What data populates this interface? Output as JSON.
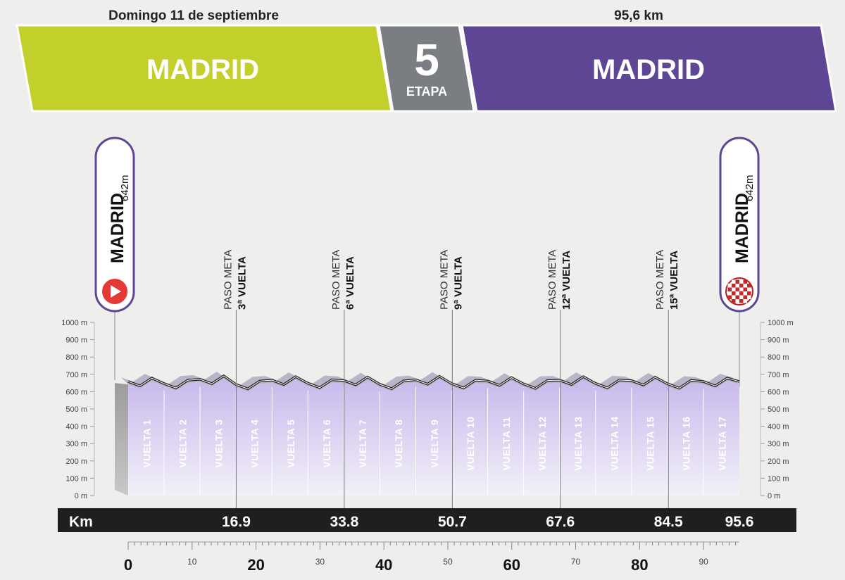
{
  "header": {
    "date": "Domingo 11 de septiembre",
    "distance": "95,6 km",
    "start_city": "MADRID",
    "finish_city": "MADRID",
    "stage_number": "5",
    "stage_label": "ETAPA",
    "start_color": "#c3d02b",
    "finish_color": "#5e4694",
    "badge_color": "#7a7d82"
  },
  "markers": {
    "start": {
      "name": "MADRID",
      "altitude": "642m",
      "icon": "play-icon"
    },
    "finish": {
      "name": "MADRID",
      "altitude": "642m",
      "icon": "checkered-flag-icon"
    }
  },
  "chart_data": {
    "type": "area",
    "ylim": [
      0,
      1000
    ],
    "y_ticks": [
      "0 m",
      "100 m",
      "200 m",
      "300 m",
      "400 m",
      "500 m",
      "600 m",
      "700 m",
      "800 m",
      "900 m",
      "1000 m"
    ],
    "xlim": [
      0,
      95.6
    ],
    "x_major_ticks": [
      "0",
      "20",
      "40",
      "60",
      "80"
    ],
    "x_minor_ticks": [
      "10",
      "30",
      "50",
      "70",
      "90"
    ],
    "km_label": "Km",
    "km_marks": [
      "16.9",
      "33.8",
      "50.7",
      "67.6",
      "84.5",
      "95.6"
    ],
    "laps": [
      "VUELTA 1",
      "VUELTA 2",
      "VUELTA 3",
      "VUELTA 4",
      "VUELTA 5",
      "VUELTA 6",
      "VUELTA 7",
      "VUELTA 8",
      "VUELTA 9",
      "VUELTA 10",
      "VUELTA 11",
      "VUELTA 12",
      "VUELTA 13",
      "VUELTA 14",
      "VUELTA 15",
      "VUELTA 16",
      "VUELTA 17"
    ],
    "lap_altitude_m": [
      642,
      630,
      655,
      625,
      650,
      632,
      648,
      626,
      652,
      630,
      645,
      628,
      650,
      631,
      647,
      629,
      642
    ],
    "passes": [
      {
        "km": 16.9,
        "line1": "PASO META",
        "line2": "3ª VUELTA"
      },
      {
        "km": 33.8,
        "line1": "PASO META",
        "line2": "6ª VUELTA"
      },
      {
        "km": 50.7,
        "line1": "PASO META",
        "line2": "9ª VUELTA"
      },
      {
        "km": 67.6,
        "line1": "PASO META",
        "line2": "12ª VUELTA"
      },
      {
        "km": 84.5,
        "line1": "PASO META",
        "line2": "15ª VUELTA"
      }
    ],
    "profile_color": "#d9cff0",
    "line_color": "#222222"
  }
}
